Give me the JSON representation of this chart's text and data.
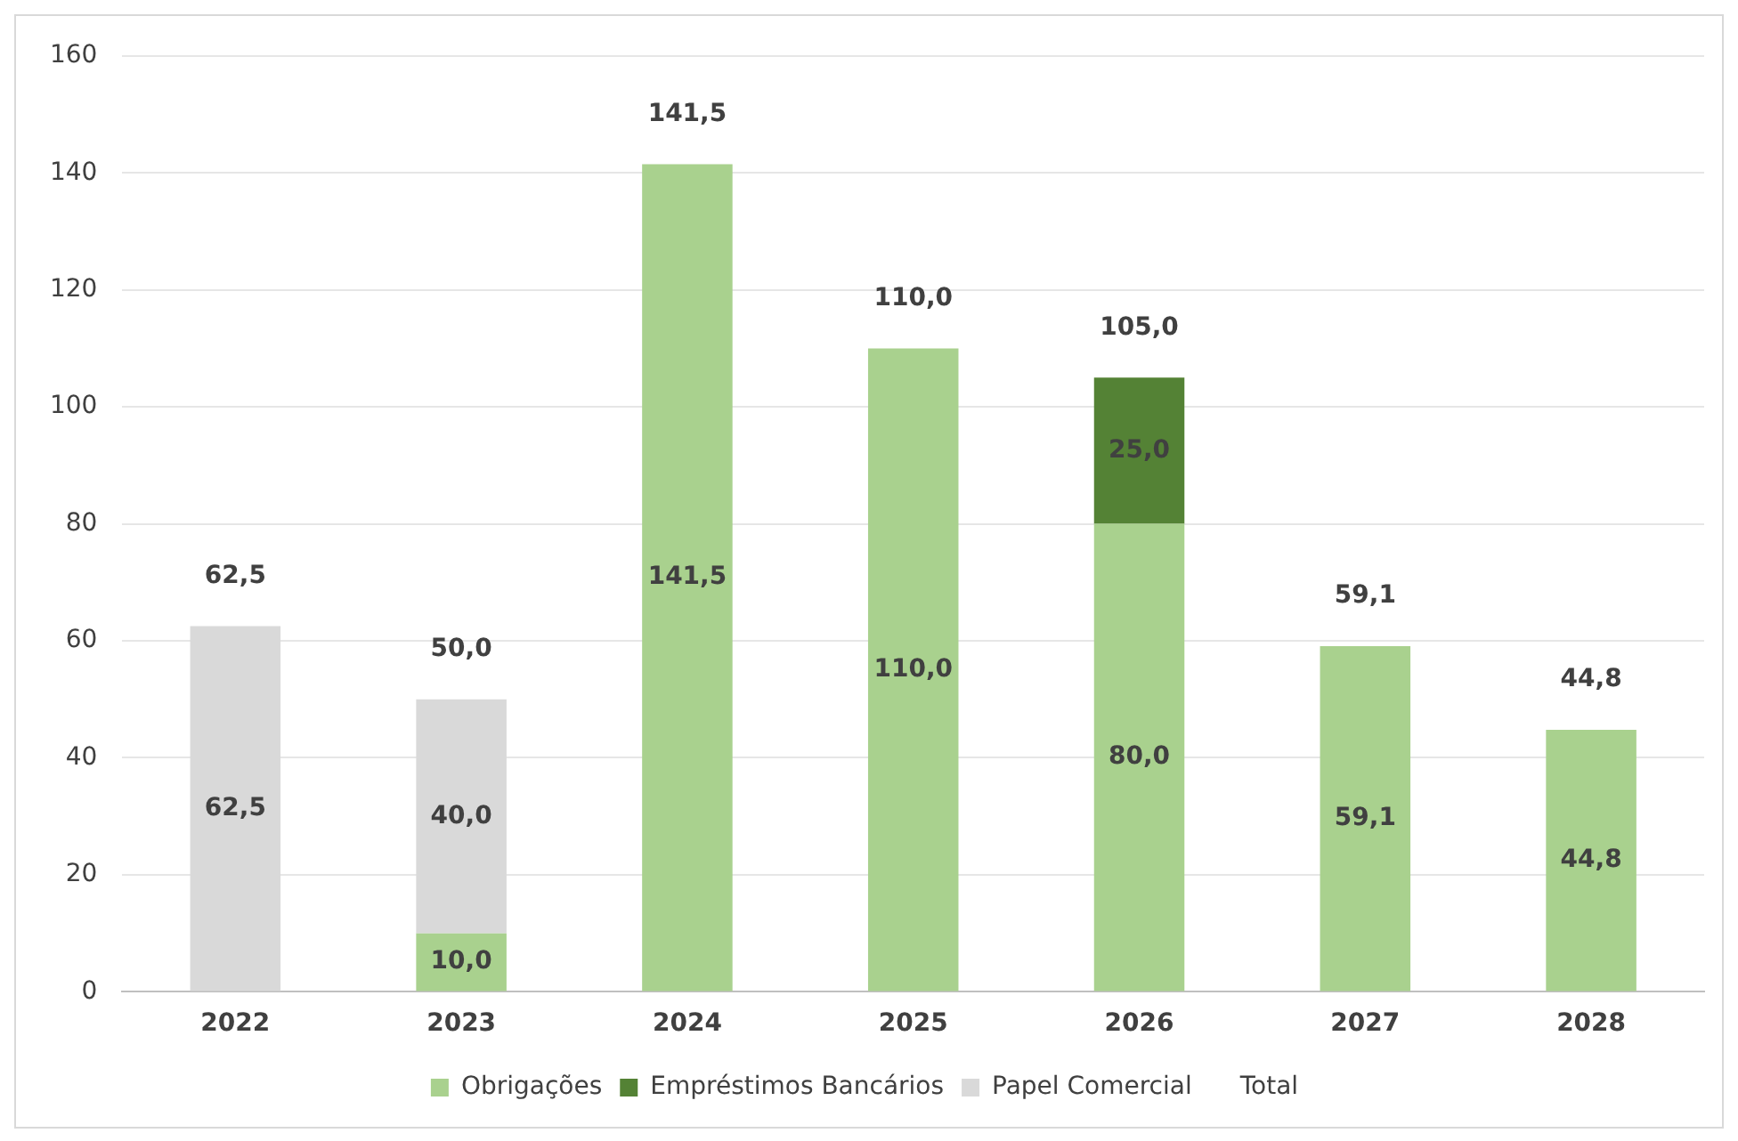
{
  "chart_data": {
    "type": "bar",
    "stacked": true,
    "categories": [
      "2022",
      "2023",
      "2024",
      "2025",
      "2026",
      "2027",
      "2028"
    ],
    "series": [
      {
        "name": "Obrigações",
        "color": "#a9d18e",
        "values": [
          null,
          10,
          141.5,
          110,
          80,
          59.1,
          44.8
        ],
        "value_labels": [
          null,
          "10,0",
          "141,5",
          "110,0",
          "80,0",
          "59,1",
          "44,8"
        ]
      },
      {
        "name": "Empréstimos Bancários",
        "color": "#548235",
        "values": [
          null,
          null,
          null,
          null,
          25,
          null,
          null
        ],
        "value_labels": [
          null,
          null,
          null,
          null,
          "25,0",
          null,
          null
        ]
      },
      {
        "name": "Papel Comercial",
        "color": "#d9d9d9",
        "values": [
          62.5,
          40,
          null,
          null,
          null,
          null,
          null
        ],
        "value_labels": [
          "62,5",
          "40,0",
          null,
          null,
          null,
          null,
          null
        ]
      }
    ],
    "totals": [
      "62,5",
      "50,0",
      "141,5",
      "110,0",
      "105,0",
      "59,1",
      "44,8"
    ],
    "annotations": [
      "Total"
    ],
    "ylim": [
      0,
      160
    ],
    "yticks": [
      0,
      20,
      40,
      60,
      80,
      100,
      120,
      140,
      160
    ],
    "grid": "y",
    "legend": "bottom"
  }
}
